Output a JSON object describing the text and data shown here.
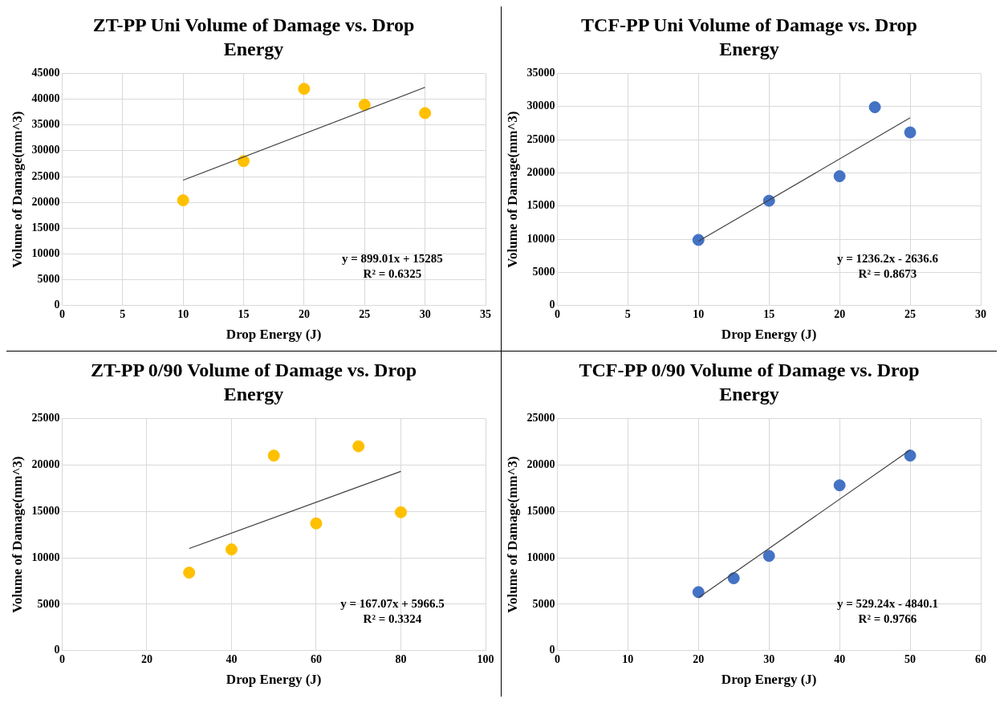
{
  "chart_data": [
    {
      "type": "scatter",
      "title": "ZT-PP Uni Volume of Damage vs. Drop Energy",
      "xlabel": "Drop Energy (J)",
      "ylabel": "Volume of Damage(mm^3)",
      "xlim": [
        0,
        35
      ],
      "xticks": [
        0,
        5,
        10,
        15,
        20,
        25,
        30,
        35
      ],
      "ylim": [
        0,
        45000
      ],
      "yticks": [
        0,
        5000,
        10000,
        15000,
        20000,
        25000,
        30000,
        35000,
        40000,
        45000
      ],
      "grid": true,
      "legend": false,
      "series": [
        {
          "color": "#ffc000",
          "marker": "circle",
          "x": [
            10,
            15,
            20,
            25,
            30
          ],
          "values": [
            20400,
            28000,
            42000,
            38900,
            37300
          ]
        },
        {
          "type": "line",
          "marker": "none",
          "color": "#404040",
          "x": [
            10,
            30
          ],
          "values": [
            24300,
            42300
          ]
        }
      ],
      "annotations": [
        "y = 899.01x + 15285",
        "R² = 0.6325"
      ]
    },
    {
      "type": "scatter",
      "title": "TCF-PP Uni Volume of Damage vs. Drop Energy",
      "xlabel": "Drop Energy (J)",
      "ylabel": "Volume of Damage(mm^3)",
      "xlim": [
        0,
        30
      ],
      "xticks": [
        0,
        5,
        10,
        15,
        20,
        25,
        30
      ],
      "ylim": [
        0,
        35000
      ],
      "yticks": [
        0,
        5000,
        10000,
        15000,
        20000,
        25000,
        30000,
        35000
      ],
      "grid": true,
      "legend": false,
      "series": [
        {
          "color": "#4472c4",
          "marker": "circle",
          "x": [
            10,
            15,
            20,
            22.5,
            25
          ],
          "values": [
            9900,
            15800,
            19500,
            29900,
            26100
          ]
        },
        {
          "type": "line",
          "marker": "none",
          "color": "#404040",
          "x": [
            10,
            25
          ],
          "values": [
            9700,
            28300
          ]
        }
      ],
      "annotations": [
        "y = 1236.2x - 2636.6",
        "R² = 0.8673"
      ]
    },
    {
      "type": "scatter",
      "title": "ZT-PP 0/90 Volume of Damage vs. Drop Energy",
      "xlabel": "Drop Energy (J)",
      "ylabel": "Volume of Damage(mm^3)",
      "xlim": [
        0,
        100
      ],
      "xticks": [
        0,
        20,
        40,
        60,
        80,
        100
      ],
      "ylim": [
        0,
        25000
      ],
      "yticks": [
        0,
        5000,
        10000,
        15000,
        20000,
        25000
      ],
      "grid": true,
      "legend": false,
      "series": [
        {
          "color": "#ffc000",
          "marker": "circle",
          "x": [
            30,
            40,
            50,
            60,
            70,
            80
          ],
          "values": [
            8400,
            10900,
            21000,
            13700,
            22000,
            14900
          ]
        },
        {
          "type": "line",
          "marker": "none",
          "color": "#404040",
          "x": [
            30,
            80
          ],
          "values": [
            11000,
            19300
          ]
        }
      ],
      "annotations": [
        "y = 167.07x + 5966.5",
        "R² = 0.3324"
      ]
    },
    {
      "type": "scatter",
      "title": "TCF-PP 0/90 Volume of Damage vs. Drop Energy",
      "xlabel": "Drop Energy (J)",
      "ylabel": "Volume of Damage(mm^3)",
      "xlim": [
        0,
        60
      ],
      "xticks": [
        0,
        10,
        20,
        30,
        40,
        50,
        60
      ],
      "ylim": [
        0,
        25000
      ],
      "yticks": [
        0,
        5000,
        10000,
        15000,
        20000,
        25000
      ],
      "grid": true,
      "legend": false,
      "series": [
        {
          "color": "#4472c4",
          "marker": "circle",
          "x": [
            20,
            25,
            30,
            40,
            50
          ],
          "values": [
            6300,
            7800,
            10200,
            17800,
            21000
          ]
        },
        {
          "type": "line",
          "marker": "none",
          "color": "#404040",
          "x": [
            20,
            50
          ],
          "values": [
            5700,
            21600
          ]
        }
      ],
      "annotations": [
        "y = 529.24x - 4840.1",
        "R² = 0.9766"
      ]
    }
  ]
}
